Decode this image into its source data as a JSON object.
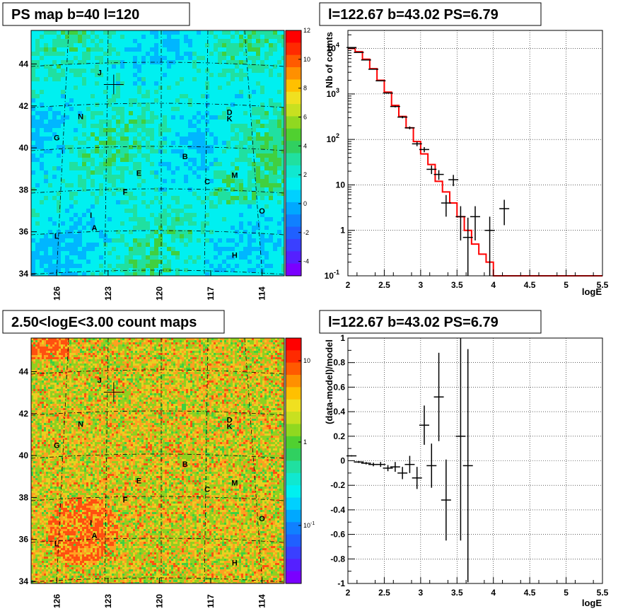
{
  "colors": {
    "model_line": "#ff0000",
    "data_points": "#000000",
    "frame": "#000000",
    "grid": "#000000",
    "palette": [
      "#7a00ff",
      "#3355ff",
      "#00b6ff",
      "#00f0f0",
      "#20e0a0",
      "#40d040",
      "#90d020",
      "#e8d020",
      "#ffa020",
      "#ff5010",
      "#ff0000"
    ]
  },
  "chart_data": [
    {
      "type": "heatmap",
      "title": "PS map b=40 l=120",
      "xticks": [
        "126",
        "123",
        "120",
        "117",
        "114"
      ],
      "yticks": [
        "34",
        "36",
        "38",
        "40",
        "42",
        "44"
      ],
      "xlim": [
        127.5,
        112.7
      ],
      "ylim": [
        33.9,
        45.6
      ],
      "colorbar_ticks": [
        "12",
        "10",
        "8",
        "6",
        "4",
        "2",
        "0",
        "-2",
        "-4"
      ],
      "zlim": [
        -5,
        12
      ],
      "sources": [
        {
          "name": "J",
          "l": 123.5,
          "b": 43.6
        },
        {
          "name": "N",
          "l": 124.6,
          "b": 41.5
        },
        {
          "name": "G",
          "l": 126.0,
          "b": 40.5
        },
        {
          "name": "D",
          "l": 115.9,
          "b": 41.7
        },
        {
          "name": "K",
          "l": 115.9,
          "b": 41.4
        },
        {
          "name": "B",
          "l": 118.5,
          "b": 39.6
        },
        {
          "name": "E",
          "l": 121.2,
          "b": 38.8
        },
        {
          "name": "C",
          "l": 117.2,
          "b": 38.4
        },
        {
          "name": "M",
          "l": 115.6,
          "b": 38.7
        },
        {
          "name": "F",
          "l": 122.0,
          "b": 37.9
        },
        {
          "name": "O",
          "l": 114.0,
          "b": 37.0
        },
        {
          "name": "I",
          "l": 124.0,
          "b": 36.8
        },
        {
          "name": "A",
          "l": 123.8,
          "b": 36.2
        },
        {
          "name": "L",
          "l": 126.0,
          "b": 35.8
        },
        {
          "name": "H",
          "l": 115.6,
          "b": 34.9
        }
      ],
      "marker": {
        "l": 122.67,
        "b": 43.02
      }
    },
    {
      "type": "line",
      "title": "l=122.67 b=43.02 PS=6.79",
      "xlabel": "logE",
      "ylabel": "Nb of counts",
      "xlim": [
        2,
        5.5
      ],
      "ylim": [
        0.1,
        25000
      ],
      "yscale": "log",
      "xticks": [
        "2",
        "2.5",
        "3",
        "3.5",
        "4",
        "4.5",
        "5",
        "5.5"
      ],
      "yticks": [
        "10^-1",
        "1",
        "10",
        "10^2",
        "10^3",
        "10^4"
      ],
      "grid": true,
      "series": [
        {
          "kind": "step",
          "x_edges": [
            2.0,
            2.1,
            2.2,
            2.3,
            2.4,
            2.5,
            2.6,
            2.7,
            2.8,
            2.9,
            3.0,
            3.1,
            3.2,
            3.3,
            3.4,
            3.5,
            3.6,
            3.7,
            3.8,
            3.9,
            4.0,
            5.5
          ],
          "values": [
            10000,
            8500,
            5800,
            3600,
            2000,
            1100,
            560,
            320,
            180,
            90,
            48,
            28,
            12,
            7,
            4,
            2,
            1,
            0.5,
            0.3,
            0.2,
            0.1
          ]
        },
        {
          "kind": "points",
          "x": [
            2.05,
            2.15,
            2.25,
            2.35,
            2.45,
            2.55,
            2.65,
            2.75,
            2.85,
            2.95,
            3.05,
            3.15,
            3.25,
            3.35,
            3.45,
            3.55,
            3.65,
            3.75,
            3.95,
            4.15
          ],
          "y": [
            10500,
            8200,
            5600,
            3500,
            1950,
            1050,
            530,
            310,
            180,
            80,
            60,
            22,
            17,
            4,
            13,
            2,
            0.7,
            2,
            1,
            3
          ],
          "err_lo": [
            100,
            90,
            75,
            59,
            44,
            32,
            23,
            18,
            13,
            9,
            7.7,
            4.7,
            4.1,
            2,
            3.6,
            1.4,
            0.7,
            1.4,
            1,
            1.7
          ],
          "err_hi": [
            100,
            90,
            75,
            59,
            44,
            32,
            23,
            18,
            13,
            9,
            7.7,
            4.7,
            4.1,
            2,
            3.6,
            1.4,
            1.2,
            1.4,
            1,
            1.7
          ]
        }
      ]
    },
    {
      "type": "heatmap",
      "title": "2.50<logE<3.00 count maps",
      "xticks": [
        "126",
        "123",
        "120",
        "117",
        "114"
      ],
      "yticks": [
        "34",
        "36",
        "38",
        "40",
        "42",
        "44"
      ],
      "xlim": [
        127.5,
        112.7
      ],
      "ylim": [
        33.9,
        45.6
      ],
      "colorbar_ticks": [
        "10",
        "1",
        "10^-1"
      ],
      "zscale": "log",
      "sources": [
        {
          "name": "J",
          "l": 123.5,
          "b": 43.6
        },
        {
          "name": "N",
          "l": 124.6,
          "b": 41.5
        },
        {
          "name": "G",
          "l": 126.0,
          "b": 40.5
        },
        {
          "name": "D",
          "l": 115.9,
          "b": 41.7
        },
        {
          "name": "K",
          "l": 115.9,
          "b": 41.4
        },
        {
          "name": "B",
          "l": 118.5,
          "b": 39.6
        },
        {
          "name": "E",
          "l": 121.2,
          "b": 38.8
        },
        {
          "name": "C",
          "l": 117.2,
          "b": 38.4
        },
        {
          "name": "M",
          "l": 115.6,
          "b": 38.7
        },
        {
          "name": "F",
          "l": 122.0,
          "b": 37.9
        },
        {
          "name": "O",
          "l": 114.0,
          "b": 37.0
        },
        {
          "name": "I",
          "l": 124.0,
          "b": 36.8
        },
        {
          "name": "A",
          "l": 123.8,
          "b": 36.2
        },
        {
          "name": "L",
          "l": 126.0,
          "b": 35.8
        },
        {
          "name": "H",
          "l": 115.6,
          "b": 34.9
        }
      ],
      "marker": {
        "l": 122.67,
        "b": 43.02
      }
    },
    {
      "type": "scatter",
      "title": "l=122.67 b=43.02 PS=6.79",
      "xlabel": "logE",
      "ylabel": "(data-model)/model",
      "xlim": [
        2,
        5.5
      ],
      "ylim": [
        -1,
        1
      ],
      "xticks": [
        "2",
        "2.5",
        "3",
        "3.5",
        "4",
        "4.5",
        "5",
        "5.5"
      ],
      "yticks": [
        "-1",
        "-0.8",
        "-0.6",
        "-0.4",
        "-0.2",
        "0",
        "0.2",
        "0.4",
        "0.6",
        "0.8",
        "1"
      ],
      "grid": true,
      "series": [
        {
          "kind": "points",
          "x": [
            2.05,
            2.15,
            2.25,
            2.35,
            2.45,
            2.55,
            2.65,
            2.75,
            2.85,
            2.95,
            3.05,
            3.15,
            3.25,
            3.35,
            3.55,
            3.65
          ],
          "y": [
            0.04,
            -0.01,
            -0.02,
            -0.03,
            -0.03,
            -0.06,
            -0.05,
            -0.1,
            -0.03,
            -0.14,
            0.29,
            -0.04,
            0.52,
            -0.32,
            0.2,
            -0.04
          ],
          "err": [
            0.005,
            0.008,
            0.01,
            0.015,
            0.02,
            0.025,
            0.04,
            0.05,
            0.07,
            0.09,
            0.16,
            0.18,
            0.36,
            0.33,
            0.85,
            0.95
          ]
        }
      ]
    }
  ]
}
